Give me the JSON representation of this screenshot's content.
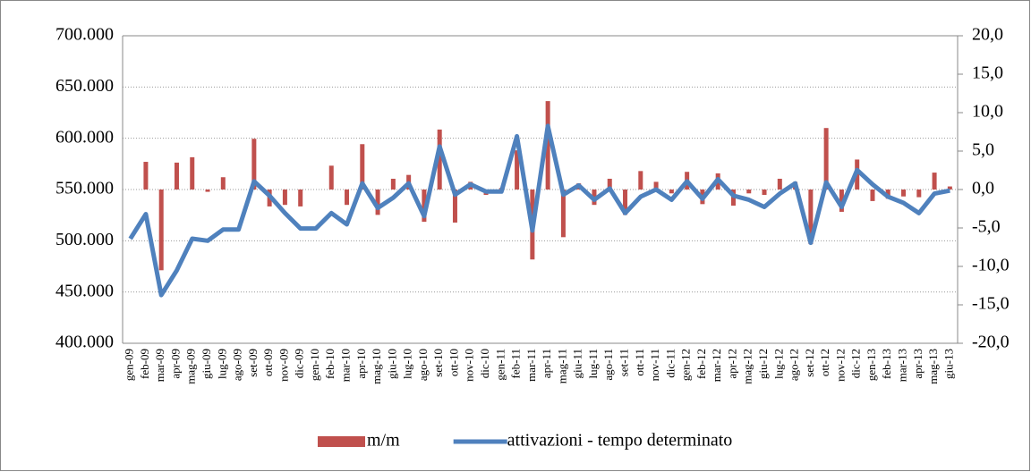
{
  "chart_data": {
    "type": "bar-line",
    "categories": [
      "gen-09",
      "feb-09",
      "mar-09",
      "apr-09",
      "mag-09",
      "giu-09",
      "lug-09",
      "ago-09",
      "set-09",
      "ott-09",
      "nov-09",
      "dic-09",
      "gen-10",
      "feb-10",
      "mar-10",
      "apr-10",
      "mag-10",
      "giu-10",
      "lug-10",
      "ago-10",
      "set-10",
      "ott-10",
      "nov-10",
      "dic-10",
      "gen-11",
      "feb-11",
      "mar-11",
      "apr-11",
      "mag-11",
      "giu-11",
      "lug-11",
      "ago-11",
      "set-11",
      "ott-11",
      "nov-11",
      "dic-11",
      "gen-12",
      "feb-12",
      "mar-12",
      "apr-12",
      "mag-12",
      "giu-12",
      "lug-12",
      "ago-12",
      "set-12",
      "ott-12",
      "nov-12",
      "dic-12",
      "gen-13",
      "feb-13",
      "mar-13",
      "apr-13",
      "mag-13",
      "giu-13"
    ],
    "series": [
      {
        "name": "m/m",
        "type": "bar",
        "axis": "y2",
        "color": "#c0504d",
        "values": [
          0,
          3.6,
          -10.5,
          3.5,
          4.2,
          -0.3,
          1.6,
          0,
          6.6,
          -2.2,
          -2.0,
          -2.2,
          0,
          3.1,
          -2.0,
          5.9,
          -3.3,
          1.4,
          1.9,
          -4.2,
          7.8,
          -4.3,
          1.0,
          -0.7,
          0.2,
          5.1,
          -9.1,
          11.5,
          -6.2,
          0.8,
          -2.0,
          1.4,
          -3.3,
          2.4,
          1.0,
          -0.5,
          2.3,
          -1.9,
          2.1,
          -2.1,
          -0.5,
          -0.7,
          1.4,
          1.0,
          -7.1,
          8.0,
          -2.9,
          3.9,
          -1.5,
          -1.2,
          -0.9,
          -1.0,
          2.2,
          0.4
        ]
      },
      {
        "name": "attivazioni - tempo determinato",
        "type": "line",
        "axis": "y",
        "color": "#4f81bd",
        "values": [
          502000,
          526000,
          447000,
          471000,
          502000,
          500000,
          511000,
          511000,
          558000,
          544000,
          527000,
          512000,
          512000,
          527000,
          516000,
          556000,
          532000,
          542000,
          556000,
          524000,
          592000,
          545000,
          555000,
          548000,
          548000,
          602000,
          510000,
          612000,
          545000,
          554000,
          540000,
          551000,
          527000,
          543000,
          550000,
          540000,
          558000,
          541000,
          560000,
          544000,
          540000,
          533000,
          546000,
          556000,
          498000,
          557000,
          533000,
          569000,
          555000,
          543000,
          537000,
          527000,
          546000,
          549000
        ]
      }
    ],
    "ylim": [
      400000,
      700000
    ],
    "yticks": [
      {
        "value": 400000,
        "label": "400.000"
      },
      {
        "value": 450000,
        "label": "450.000"
      },
      {
        "value": 500000,
        "label": "500.000"
      },
      {
        "value": 550000,
        "label": "550.000"
      },
      {
        "value": 600000,
        "label": "600.000"
      },
      {
        "value": 650000,
        "label": "650.000"
      },
      {
        "value": 700000,
        "label": "700.000"
      }
    ],
    "y2lim": [
      -20,
      20
    ],
    "y2ticks": [
      {
        "value": -20,
        "label": "-20,0"
      },
      {
        "value": -15,
        "label": "-15,0"
      },
      {
        "value": -10,
        "label": "-10,0"
      },
      {
        "value": -5,
        "label": "-5,0"
      },
      {
        "value": 0,
        "label": "0,0"
      },
      {
        "value": 5,
        "label": "5,0"
      },
      {
        "value": 10,
        "label": "10,0"
      },
      {
        "value": 15,
        "label": "15,0"
      },
      {
        "value": 20,
        "label": "20,0"
      }
    ],
    "grid": true,
    "legend": "bottom"
  }
}
